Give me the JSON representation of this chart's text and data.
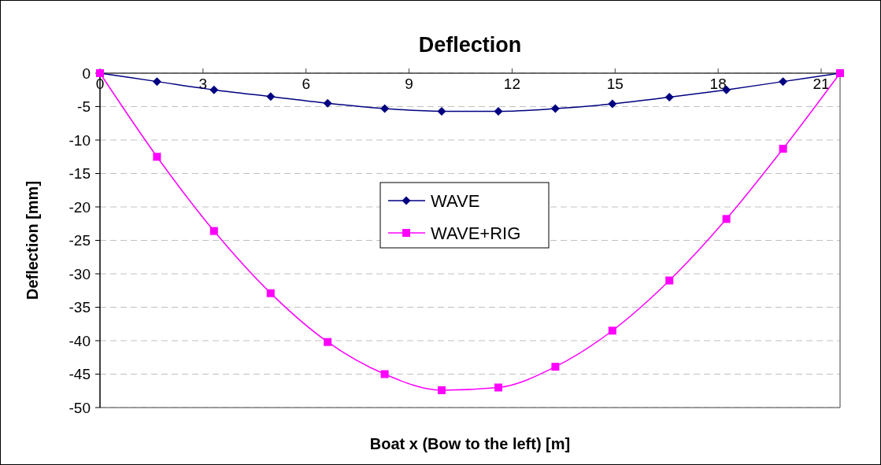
{
  "chart_data": {
    "type": "line",
    "title": "Deflection",
    "xlabel": "Boat x (Bow to the left) [m]",
    "ylabel": "Deflection [mm]",
    "x": [
      0,
      1.66,
      3.32,
      4.97,
      6.63,
      8.29,
      9.95,
      11.6,
      13.26,
      14.92,
      16.58,
      18.24,
      19.89,
      21.55
    ],
    "series": [
      {
        "name": "WAVE",
        "color": "#000080",
        "marker": "diamond",
        "values": [
          0,
          -1.25,
          -2.5,
          -3.5,
          -4.5,
          -5.3,
          -5.7,
          -5.7,
          -5.3,
          -4.6,
          -3.6,
          -2.5,
          -1.25,
          0
        ]
      },
      {
        "name": "WAVE+RIG",
        "color": "#ff00ff",
        "marker": "square",
        "values": [
          0,
          -12.5,
          -23.6,
          -32.9,
          -40.2,
          -45,
          -47.4,
          -47,
          -43.9,
          -38.5,
          -31,
          -21.8,
          -11.3,
          0
        ]
      }
    ],
    "xlim": [
      0,
      21.55
    ],
    "xticks": [
      0,
      3,
      6,
      9,
      12,
      15,
      18,
      21
    ],
    "ylim": [
      -50,
      0
    ],
    "yticks": [
      -50,
      -45,
      -40,
      -35,
      -30,
      -25,
      -20,
      -15,
      -10,
      -5,
      0
    ],
    "grid": "y",
    "legend": "center",
    "line_style": "solid"
  }
}
